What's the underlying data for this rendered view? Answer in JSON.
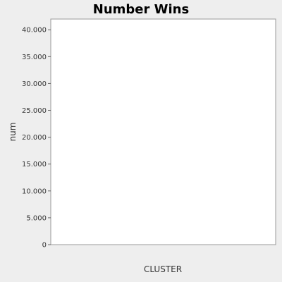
{
  "chart_data": {
    "type": "bar",
    "title": "Number Wins",
    "xlabel": "CLUSTER",
    "ylabel": "num",
    "ylim": [
      0,
      42000
    ],
    "yticks": [
      0,
      5000,
      10000,
      15000,
      20000,
      25000,
      30000,
      35000,
      40000
    ],
    "ytick_labels": [
      "0",
      "5.000",
      "10.000",
      "15.000",
      "20.000",
      "25.000",
      "30.000",
      "35.000",
      "40.000"
    ],
    "grid": false,
    "legend": "none",
    "colors": {
      "background": "#eeeeee",
      "plot_background": "#ffffff",
      "plot_border": "#999999",
      "text": "#333333",
      "bar": "#ff5555"
    },
    "categories": [],
    "series": [
      {
        "values": []
      }
    ]
  }
}
